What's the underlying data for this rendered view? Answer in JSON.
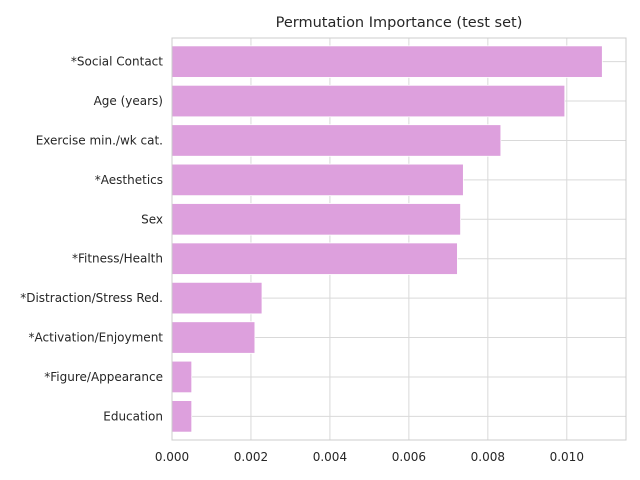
{
  "chart_data": {
    "type": "bar",
    "orientation": "horizontal",
    "title": "Permutation Importance (test set)",
    "xlabel": "",
    "ylabel": "",
    "categories": [
      "*Social Contact",
      "Age (years)",
      "Exercise min./wk cat.",
      "*Aesthetics",
      "Sex",
      "*Fitness/Health",
      "*Distraction/Stress Red.",
      "*Activation/Enjoyment",
      "*Figure/Appearance",
      "Education"
    ],
    "values": [
      0.0109,
      0.00995,
      0.00833,
      0.00738,
      0.00731,
      0.00723,
      0.00228,
      0.0021,
      0.0005,
      0.0005
    ],
    "xlim": [
      0,
      0.0115
    ],
    "xticks": [
      0.0,
      0.002,
      0.004,
      0.006,
      0.008,
      0.01
    ],
    "xtick_labels": [
      "0.000",
      "0.002",
      "0.004",
      "0.006",
      "0.008",
      "0.010"
    ],
    "grid": true,
    "bar_color": "#dda0dd"
  }
}
